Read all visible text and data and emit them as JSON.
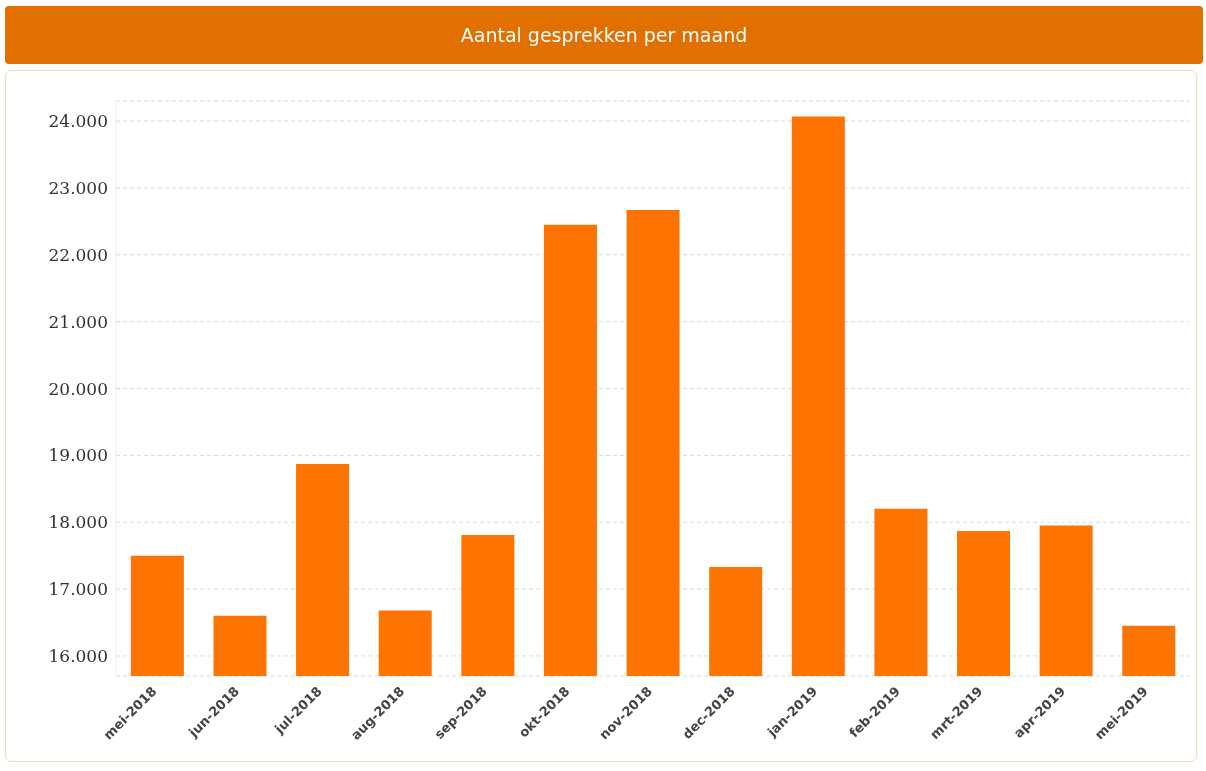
{
  "chart_data": {
    "type": "bar",
    "title": "Aantal gesprekken per maand",
    "categories": [
      "mei-2018",
      "jun-2018",
      "jul-2018",
      "aug-2018",
      "sep-2018",
      "okt-2018",
      "nov-2018",
      "dec-2018",
      "jan-2019",
      "feb-2019",
      "mrt-2019",
      "apr-2019",
      "mei-2019"
    ],
    "values": [
      17500,
      16600,
      18870,
      16680,
      17810,
      22450,
      22670,
      17330,
      24070,
      18200,
      17870,
      17950,
      16450
    ],
    "color": "#ff7300",
    "ylim": [
      15700,
      24300
    ],
    "yticks": [
      {
        "value": 16000,
        "label": "16.000"
      },
      {
        "value": 17000,
        "label": "17.000"
      },
      {
        "value": 18000,
        "label": "18.000"
      },
      {
        "value": 19000,
        "label": "19.000"
      },
      {
        "value": 20000,
        "label": "20.000"
      },
      {
        "value": 21000,
        "label": "21.000"
      },
      {
        "value": 22000,
        "label": "22.000"
      },
      {
        "value": 23000,
        "label": "23.000"
      },
      {
        "value": 24000,
        "label": "24.000"
      }
    ],
    "grid": "y"
  }
}
